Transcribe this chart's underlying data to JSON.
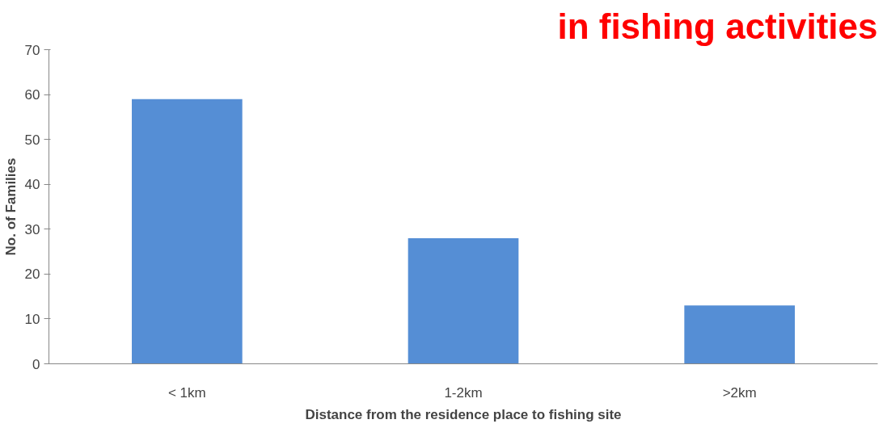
{
  "chart_data": {
    "type": "bar",
    "title": "in fishing activities",
    "xlabel": "Distance from the residence place to fishing site",
    "ylabel": "No. of Families",
    "categories": [
      "< 1km",
      "1-2km",
      ">2km"
    ],
    "values": [
      59,
      28,
      13
    ],
    "color": "#558ed5",
    "ylim": [
      0,
      70
    ],
    "yticks": [
      0,
      10,
      20,
      30,
      40,
      50,
      60,
      70
    ],
    "grid": false
  }
}
